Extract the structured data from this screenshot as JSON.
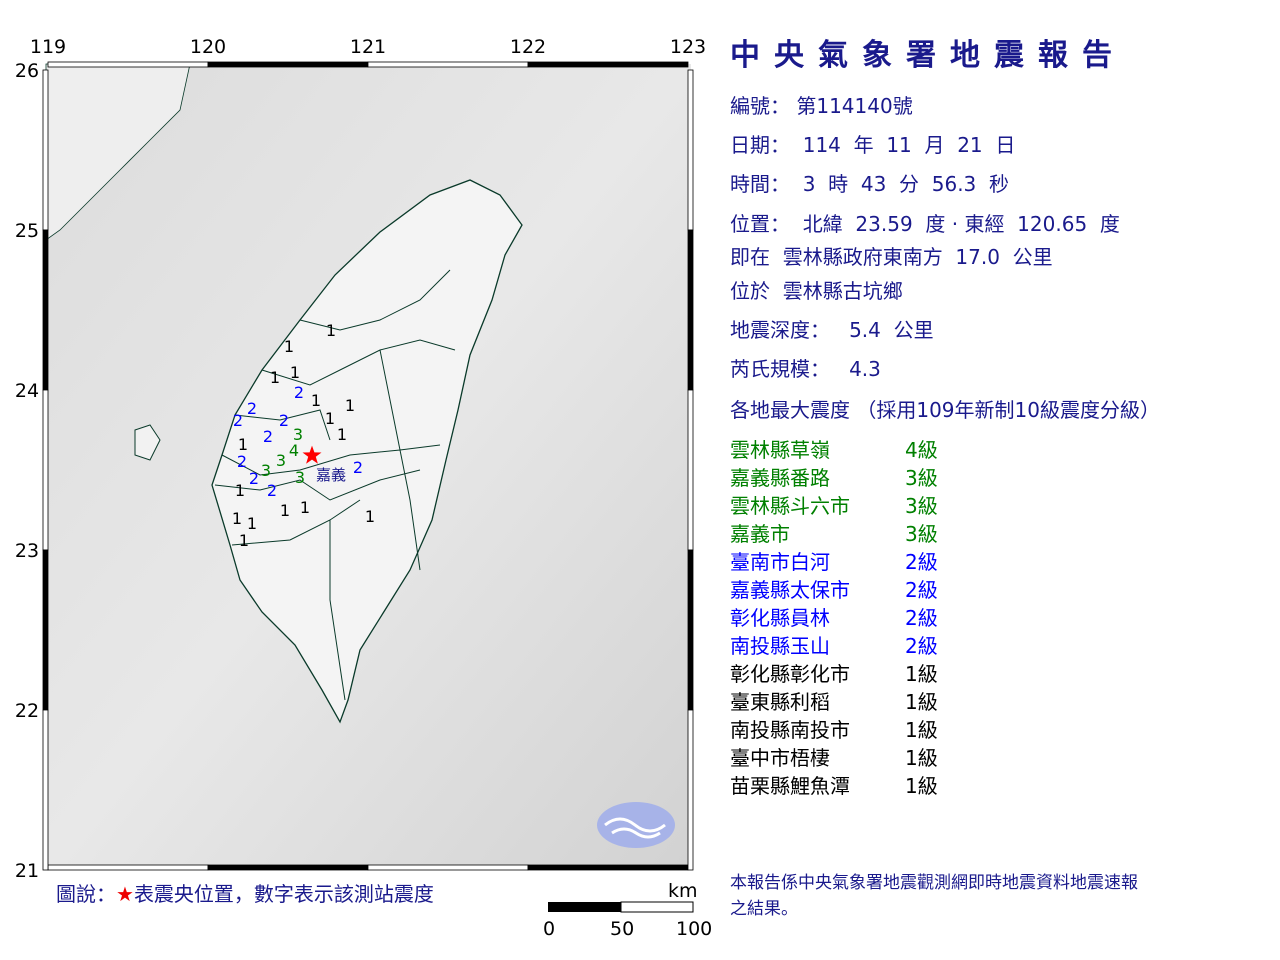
{
  "report": {
    "title": "中央氣象署地震報告",
    "number_label": "編號：",
    "number": "第114140號",
    "date_line": "日期：  114  年  11  月  21  日",
    "time_line": "時間：  3  時  43  分  56.3  秒",
    "position_line": "位置：  北緯  23.59  度 · 東經  120.65  度",
    "relative_line": "即在  雲林縣政府東南方  17.0  公里",
    "located_line": "位於  雲林縣古坑鄉",
    "depth_line": "地震深度：   5.4  公里",
    "magnitude_line": "芮氏規模：   4.3",
    "intensity_header": "各地最大震度 （採用109年新制10級震度分級）",
    "intensities": [
      {
        "place": "雲林縣草嶺",
        "level": "4級",
        "color": "#008000"
      },
      {
        "place": "嘉義縣番路",
        "level": "3級",
        "color": "#008000"
      },
      {
        "place": "雲林縣斗六市",
        "level": "3級",
        "color": "#008000"
      },
      {
        "place": "嘉義市",
        "level": "3級",
        "color": "#008000"
      },
      {
        "place": "臺南市白河",
        "level": "2級",
        "color": "#0000ff"
      },
      {
        "place": "嘉義縣太保市",
        "level": "2級",
        "color": "#0000ff"
      },
      {
        "place": "彰化縣員林",
        "level": "2級",
        "color": "#0000ff"
      },
      {
        "place": "南投縣玉山",
        "level": "2級",
        "color": "#0000ff"
      },
      {
        "place": "彰化縣彰化市",
        "level": "1級",
        "color": "#000000"
      },
      {
        "place": "臺東縣利稻",
        "level": "1級",
        "color": "#000000"
      },
      {
        "place": "南投縣南投市",
        "level": "1級",
        "color": "#000000"
      },
      {
        "place": "臺中市梧棲",
        "level": "1級",
        "color": "#000000"
      },
      {
        "place": "苗栗縣鯉魚潭",
        "level": "1級",
        "color": "#000000"
      }
    ],
    "note": "本報告係中央氣象署地震觀測網即時地震資料地震速報之結果。"
  },
  "map": {
    "lon_ticks": [
      "119",
      "120",
      "121",
      "122",
      "123"
    ],
    "lat_ticks": [
      "26",
      "25",
      "24",
      "23",
      "22",
      "21"
    ],
    "epicenter": {
      "lat": 23.59,
      "lon": 120.65
    },
    "city_label": "嘉義",
    "station_intensities": [
      "1",
      "1",
      "1",
      "1",
      "2",
      "1",
      "1",
      "1",
      "2",
      "2",
      "2",
      "2",
      "1",
      "1",
      "2",
      "3",
      "4",
      "3",
      "3",
      "3",
      "2",
      "2",
      "1",
      "2",
      "1",
      "1",
      "1",
      "1",
      "1",
      "1"
    ],
    "intensity_colors": {
      "1": "#000000",
      "2": "#0000ff",
      "3": "#008000",
      "4": "#008000"
    },
    "legend_prefix": "圖說：",
    "legend_star": "★",
    "legend_text": "表震央位置，數字表示該測站震度",
    "scale_unit": "km",
    "scale_labels": [
      "0",
      "50",
      "100"
    ]
  }
}
